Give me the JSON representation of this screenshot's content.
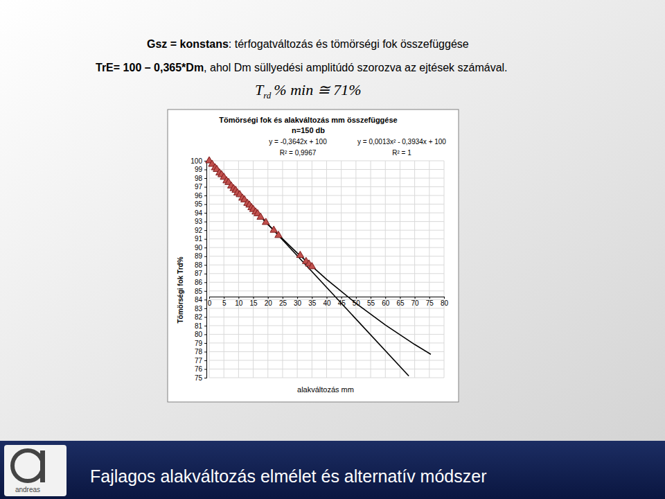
{
  "slide": {
    "title_bold": "Gsz = konstans",
    "title_rest": ": térfogatváltozás és tömörségi fok összefüggése",
    "line2_bold": "TrE= 100 – 0,365*Dm",
    "line2_rest": ", ahol Dm süllyedési amplitúdó szorozva az ejtések számával.",
    "formula": {
      "symbol": "T",
      "subscript": "rd",
      "text": "% min ≅ 71%"
    },
    "footer": "Fajlagos alakváltozás elmélet és alternatív módszer",
    "logo": "andreas"
  },
  "chart_data": {
    "type": "scatter",
    "title": "Tömörségi fok és alakváltozás mm összefüggése",
    "subtitle": "n=150 db",
    "x_label": "alakváltozás mm",
    "y_label": "Tömörségi fok Trd%",
    "annotations": [
      {
        "text": "y = -0,3642x + 100"
      },
      {
        "text": "R² = 0,9967"
      },
      {
        "text": "y = 0,0013x² - 0,3934x + 100"
      },
      {
        "text": "R² = 1"
      }
    ],
    "xlim": [
      0,
      80
    ],
    "xticks": [
      0,
      5,
      10,
      15,
      20,
      25,
      30,
      35,
      40,
      45,
      50,
      55,
      60,
      65,
      70,
      75,
      80
    ],
    "ylim": [
      75,
      100
    ],
    "yticks": [
      75,
      76,
      77,
      78,
      79,
      80,
      81,
      82,
      83,
      84,
      85,
      86,
      87,
      88,
      89,
      90,
      91,
      92,
      93,
      94,
      95,
      96,
      97,
      98,
      99,
      100
    ],
    "grid": true,
    "series": [
      {
        "type": "scatter",
        "marker": "triangle",
        "color": "#c0504d",
        "x": [
          0,
          1,
          2,
          2.6,
          3.5,
          4.2,
          5,
          5.9,
          6.6,
          7.5,
          8.3,
          9,
          9.6,
          10.4,
          11.3,
          12,
          13,
          13.7,
          14.4,
          15,
          15.8,
          16.5,
          17.5,
          19.3,
          22,
          23.6,
          31,
          33,
          34,
          35
        ],
        "values": [
          100,
          99.6,
          99.2,
          99,
          98.6,
          98.4,
          98.1,
          97.7,
          97.5,
          97.1,
          96.8,
          96.6,
          96.3,
          96.1,
          95.7,
          95.5,
          95.1,
          94.9,
          94.6,
          94.4,
          94.1,
          93.9,
          93.5,
          92.9,
          92,
          91.4,
          89.1,
          88.4,
          88.1,
          87.8
        ]
      },
      {
        "type": "line",
        "line_style": "solid",
        "color": "#000000",
        "x": [
          0,
          68
        ],
        "values": [
          100,
          75.2
        ]
      },
      {
        "type": "line",
        "line_style": "solid",
        "color": "#000000",
        "x": [
          0,
          10,
          20,
          30,
          40,
          50,
          60,
          70,
          75.5
        ],
        "values": [
          100,
          96.2,
          92.65,
          89.37,
          86.34,
          83.58,
          81.08,
          78.83,
          77.7
        ]
      }
    ]
  }
}
